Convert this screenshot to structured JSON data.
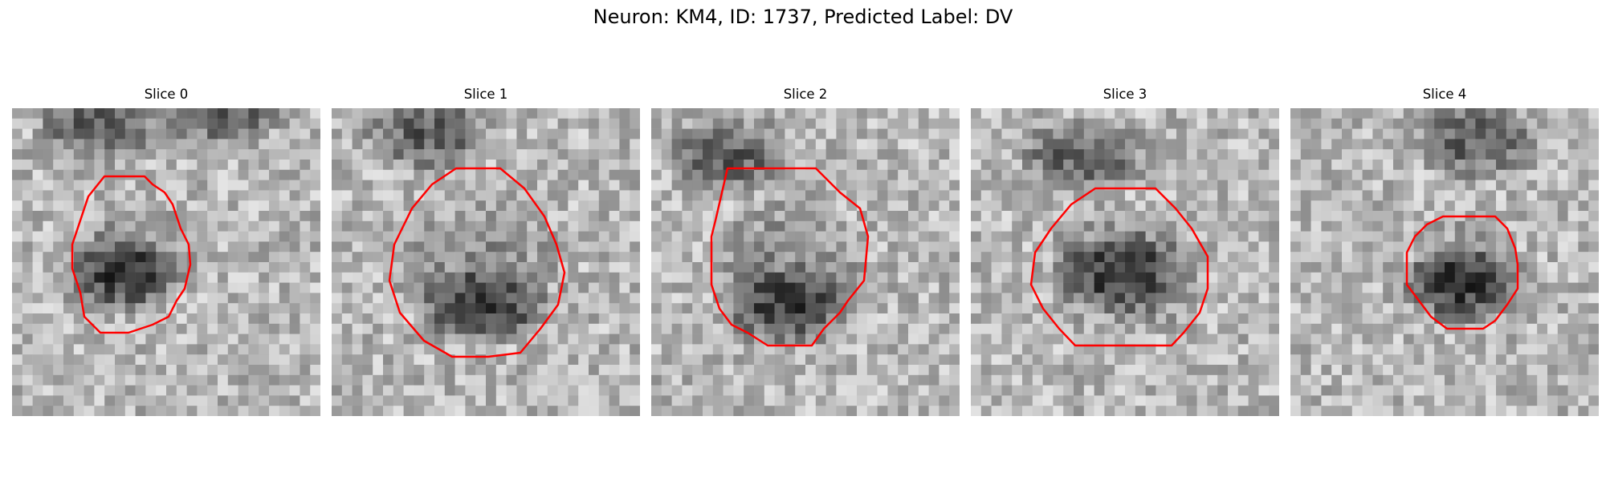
{
  "figure": {
    "title": "Neuron: KM4, ID: 1737, Predicted Label: DV",
    "contour_color": "#ff0000",
    "panels": [
      {
        "title": "Slice 0",
        "image": "grayscale-microscopy-patch",
        "contour": "red-polygon-outline"
      },
      {
        "title": "Slice 1",
        "image": "grayscale-microscopy-patch",
        "contour": "red-polygon-outline"
      },
      {
        "title": "Slice 2",
        "image": "grayscale-microscopy-patch",
        "contour": "red-polygon-outline"
      },
      {
        "title": "Slice 3",
        "image": "grayscale-microscopy-patch",
        "contour": "red-polygon-outline"
      },
      {
        "title": "Slice 4",
        "image": "grayscale-microscopy-patch",
        "contour": "red-polygon-outline"
      }
    ]
  }
}
